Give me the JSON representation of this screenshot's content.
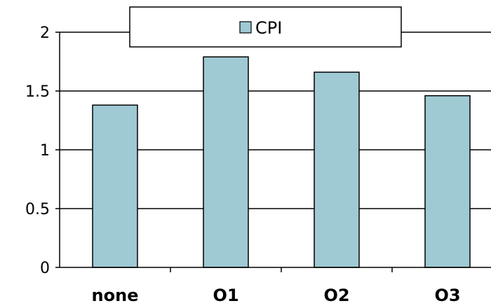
{
  "chart_data": {
    "type": "bar",
    "categories": [
      "none",
      "O1",
      "O2",
      "O3"
    ],
    "series": [
      {
        "name": "CPI",
        "values": [
          1.38,
          1.79,
          1.66,
          1.46
        ],
        "color": "#9fc9d3"
      }
    ],
    "title": "",
    "xlabel": "",
    "ylabel": "",
    "ylim": [
      0,
      2
    ],
    "yticks": [
      "0",
      "0.5",
      "1",
      "1.5",
      "2"
    ],
    "grid": true,
    "legend": "top-center"
  }
}
